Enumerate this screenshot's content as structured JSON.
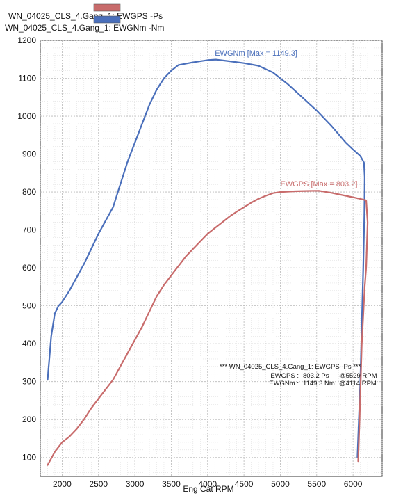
{
  "legend": {
    "items": [
      {
        "label": "WN_04025_CLS_4.Gang_1: EWGPS -Ps",
        "color": "#c86b6b"
      },
      {
        "label": "WN_04025_CLS_4.Gang_1: EWGNm -Nm",
        "color": "#4a6fbb"
      }
    ]
  },
  "summary": {
    "header": "*** WN_04025_CLS_4.Gang_1: EWGPS -Ps       ***",
    "rows": [
      {
        "name": "EWGPS :",
        "value": "803.2 Ps",
        "at": "@5529 RPM"
      },
      {
        "name": "EWGNm :",
        "value": "1149.3 Nm",
        "at": "@4114 RPM"
      }
    ]
  },
  "chart_data": {
    "type": "line",
    "xlabel": "Eng Cat RPM",
    "ylabel": "",
    "xlim": [
      1700,
      6400
    ],
    "ylim": [
      50,
      1200
    ],
    "x_ticks": [
      2000,
      2500,
      3000,
      3500,
      4000,
      4500,
      5000,
      5500,
      6000
    ],
    "y_ticks": [
      100,
      200,
      300,
      400,
      500,
      600,
      700,
      800,
      900,
      1000,
      1100,
      1200
    ],
    "grid": true,
    "legend_position": "top-left",
    "series": [
      {
        "name": "EWGNm",
        "color": "#4a6fbb",
        "annotation": "EWGNm  [Max = 1149.3]",
        "annotation_at": [
          4100,
          1160
        ],
        "points": [
          [
            1800,
            305
          ],
          [
            1850,
            420
          ],
          [
            1900,
            480
          ],
          [
            1950,
            500
          ],
          [
            2000,
            510
          ],
          [
            2100,
            540
          ],
          [
            2200,
            575
          ],
          [
            2300,
            610
          ],
          [
            2400,
            650
          ],
          [
            2500,
            690
          ],
          [
            2600,
            725
          ],
          [
            2700,
            760
          ],
          [
            2800,
            820
          ],
          [
            2900,
            880
          ],
          [
            3000,
            930
          ],
          [
            3100,
            980
          ],
          [
            3200,
            1030
          ],
          [
            3300,
            1070
          ],
          [
            3400,
            1100
          ],
          [
            3500,
            1120
          ],
          [
            3600,
            1135
          ],
          [
            3800,
            1142
          ],
          [
            4000,
            1148
          ],
          [
            4114,
            1149.3
          ],
          [
            4300,
            1145
          ],
          [
            4500,
            1140
          ],
          [
            4700,
            1133
          ],
          [
            4900,
            1115
          ],
          [
            5100,
            1085
          ],
          [
            5300,
            1050
          ],
          [
            5500,
            1015
          ],
          [
            5700,
            975
          ],
          [
            5900,
            930
          ],
          [
            6000,
            912
          ],
          [
            6100,
            895
          ],
          [
            6150,
            878
          ],
          [
            6160,
            840
          ],
          [
            6155,
            740
          ],
          [
            6140,
            600
          ],
          [
            6120,
            450
          ],
          [
            6100,
            300
          ],
          [
            6080,
            200
          ],
          [
            6060,
            100
          ]
        ]
      },
      {
        "name": "EWGPS",
        "color": "#c86b6b",
        "annotation": "EWGPS  [Max = 803.2]",
        "annotation_at": [
          5000,
          815
        ],
        "points": [
          [
            1800,
            80
          ],
          [
            1900,
            115
          ],
          [
            2000,
            140
          ],
          [
            2100,
            155
          ],
          [
            2200,
            175
          ],
          [
            2300,
            200
          ],
          [
            2400,
            230
          ],
          [
            2500,
            255
          ],
          [
            2600,
            280
          ],
          [
            2700,
            305
          ],
          [
            2800,
            340
          ],
          [
            2900,
            375
          ],
          [
            3000,
            410
          ],
          [
            3100,
            445
          ],
          [
            3200,
            485
          ],
          [
            3300,
            525
          ],
          [
            3400,
            555
          ],
          [
            3500,
            580
          ],
          [
            3600,
            605
          ],
          [
            3700,
            630
          ],
          [
            3800,
            650
          ],
          [
            3900,
            670
          ],
          [
            4000,
            690
          ],
          [
            4100,
            705
          ],
          [
            4200,
            720
          ],
          [
            4300,
            735
          ],
          [
            4400,
            748
          ],
          [
            4500,
            760
          ],
          [
            4600,
            772
          ],
          [
            4700,
            782
          ],
          [
            4800,
            790
          ],
          [
            4900,
            797
          ],
          [
            5000,
            800
          ],
          [
            5200,
            802
          ],
          [
            5400,
            803
          ],
          [
            5529,
            803.2
          ],
          [
            5700,
            798
          ],
          [
            5900,
            790
          ],
          [
            6100,
            782
          ],
          [
            6180,
            778
          ],
          [
            6200,
            720
          ],
          [
            6180,
            600
          ],
          [
            6160,
            550
          ],
          [
            6120,
            400
          ],
          [
            6090,
            200
          ],
          [
            6070,
            90
          ]
        ]
      }
    ]
  }
}
